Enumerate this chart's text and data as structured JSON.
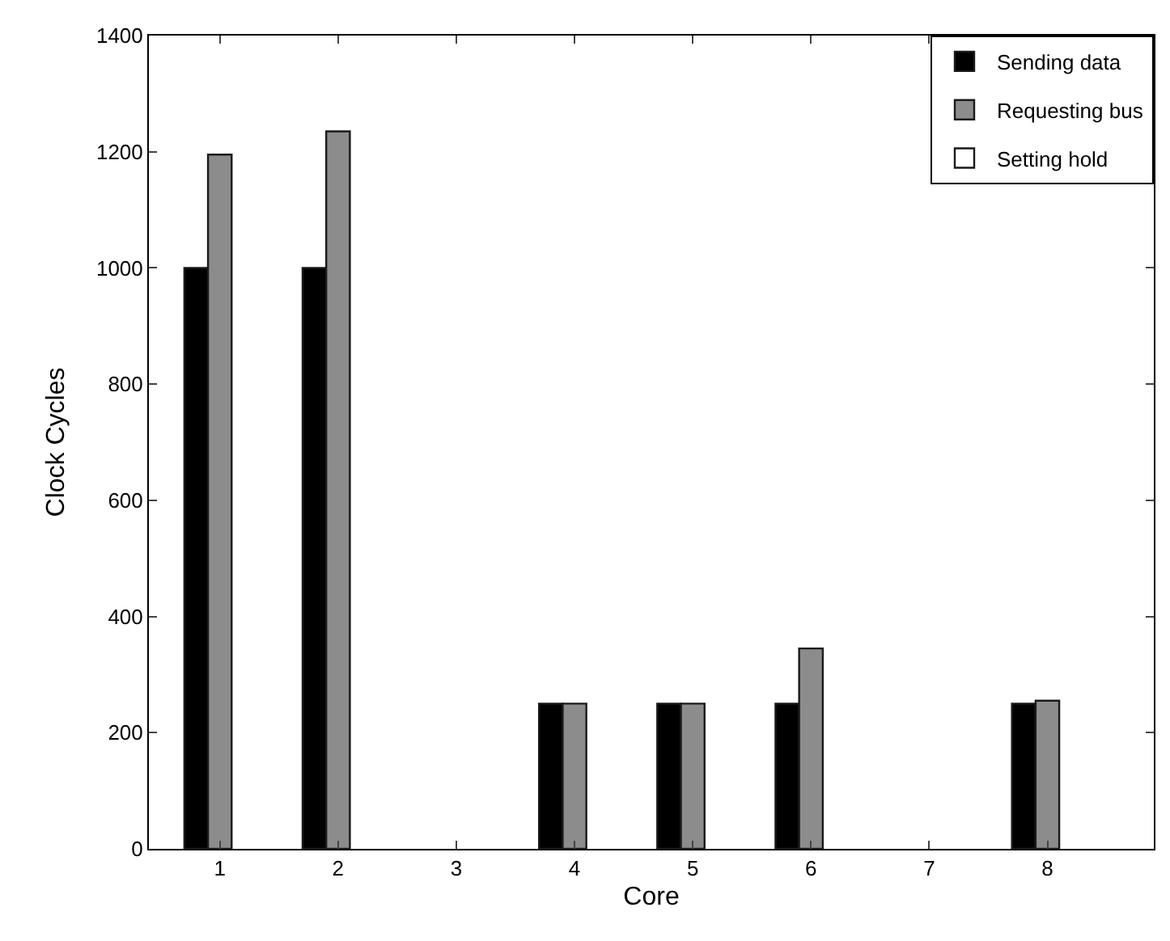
{
  "chart_data": {
    "type": "bar",
    "xlabel": "Core",
    "ylabel": "Clock Cycles",
    "categories": [
      "1",
      "2",
      "3",
      "4",
      "5",
      "6",
      "7",
      "8"
    ],
    "series": [
      {
        "name": "Sending data",
        "color": "#000000",
        "values": [
          1000,
          1000,
          null,
          250,
          250,
          250,
          null,
          250
        ]
      },
      {
        "name": "Requesting bus",
        "color": "#8c8c8c",
        "values": [
          1195,
          1235,
          null,
          250,
          250,
          345,
          null,
          255
        ]
      },
      {
        "name": "Setting hold",
        "color": "#ffffff",
        "values": [
          null,
          null,
          null,
          null,
          null,
          null,
          null,
          null
        ]
      }
    ],
    "ylim": [
      0,
      1400
    ],
    "yticks": [
      0,
      200,
      400,
      600,
      800,
      1000,
      1200,
      1400
    ],
    "legend": "top right"
  }
}
